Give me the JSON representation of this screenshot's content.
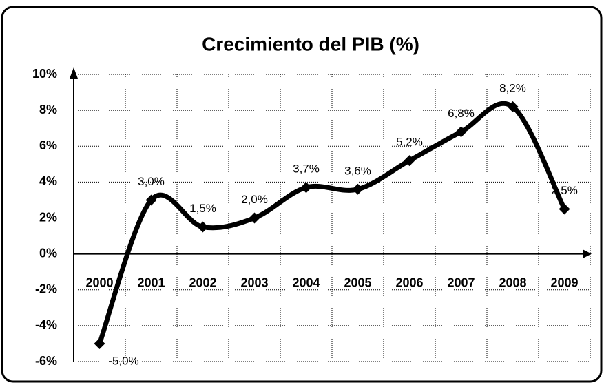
{
  "chart_data": {
    "type": "line",
    "title": "Crecimiento del PIB (%)",
    "categories": [
      "2000",
      "2001",
      "2002",
      "2003",
      "2004",
      "2005",
      "2006",
      "2007",
      "2008",
      "2009"
    ],
    "values": [
      -5.0,
      3.0,
      1.5,
      2.0,
      3.7,
      3.6,
      5.2,
      6.8,
      8.2,
      2.5
    ],
    "value_labels": [
      "-5,0%",
      "3,0%",
      "1,5%",
      "2,0%",
      "3,7%",
      "3,6%",
      "5,2%",
      "6,8%",
      "8,2%",
      "2,5%"
    ],
    "color": "#000000",
    "ylim": [
      -6,
      10
    ],
    "yticks": [
      {
        "value": -6,
        "label": "-6%"
      },
      {
        "value": -4,
        "label": "-4%"
      },
      {
        "value": -2,
        "label": "-2%"
      },
      {
        "value": 0,
        "label": "0%"
      },
      {
        "value": 2,
        "label": "2%"
      },
      {
        "value": 4,
        "label": "4%"
      },
      {
        "value": 6,
        "label": "6%"
      },
      {
        "value": 8,
        "label": "8%"
      },
      {
        "value": 10,
        "label": "10%"
      }
    ],
    "grid": true
  }
}
